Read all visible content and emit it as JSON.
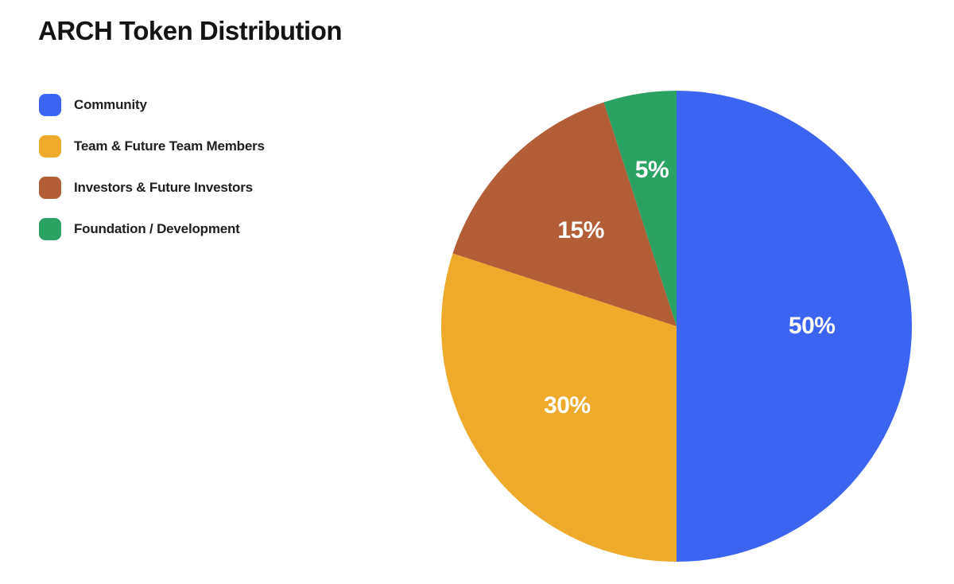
{
  "page": {
    "background_color": "#ffffff",
    "title": "ARCH Token Distribution"
  },
  "chart_data": {
    "type": "pie",
    "title": "ARCH Token Distribution",
    "categories": [
      "Community",
      "Team & Future Team Members",
      "Investors & Future Investors",
      "Foundation / Development"
    ],
    "values": [
      50,
      30,
      15,
      5
    ],
    "slice_labels": [
      "50%",
      "30%",
      "15%",
      "5%"
    ],
    "colors": [
      "#3B64F0",
      "#EDAA2B",
      "#B25E37",
      "#2AA263"
    ],
    "slice_label_color": "#FFFFFF",
    "title_color": "#141414",
    "legend_text_color": "#202020",
    "legend_position": "left",
    "start_angle_deg": 0,
    "direction": "clockwise",
    "total": 100
  }
}
